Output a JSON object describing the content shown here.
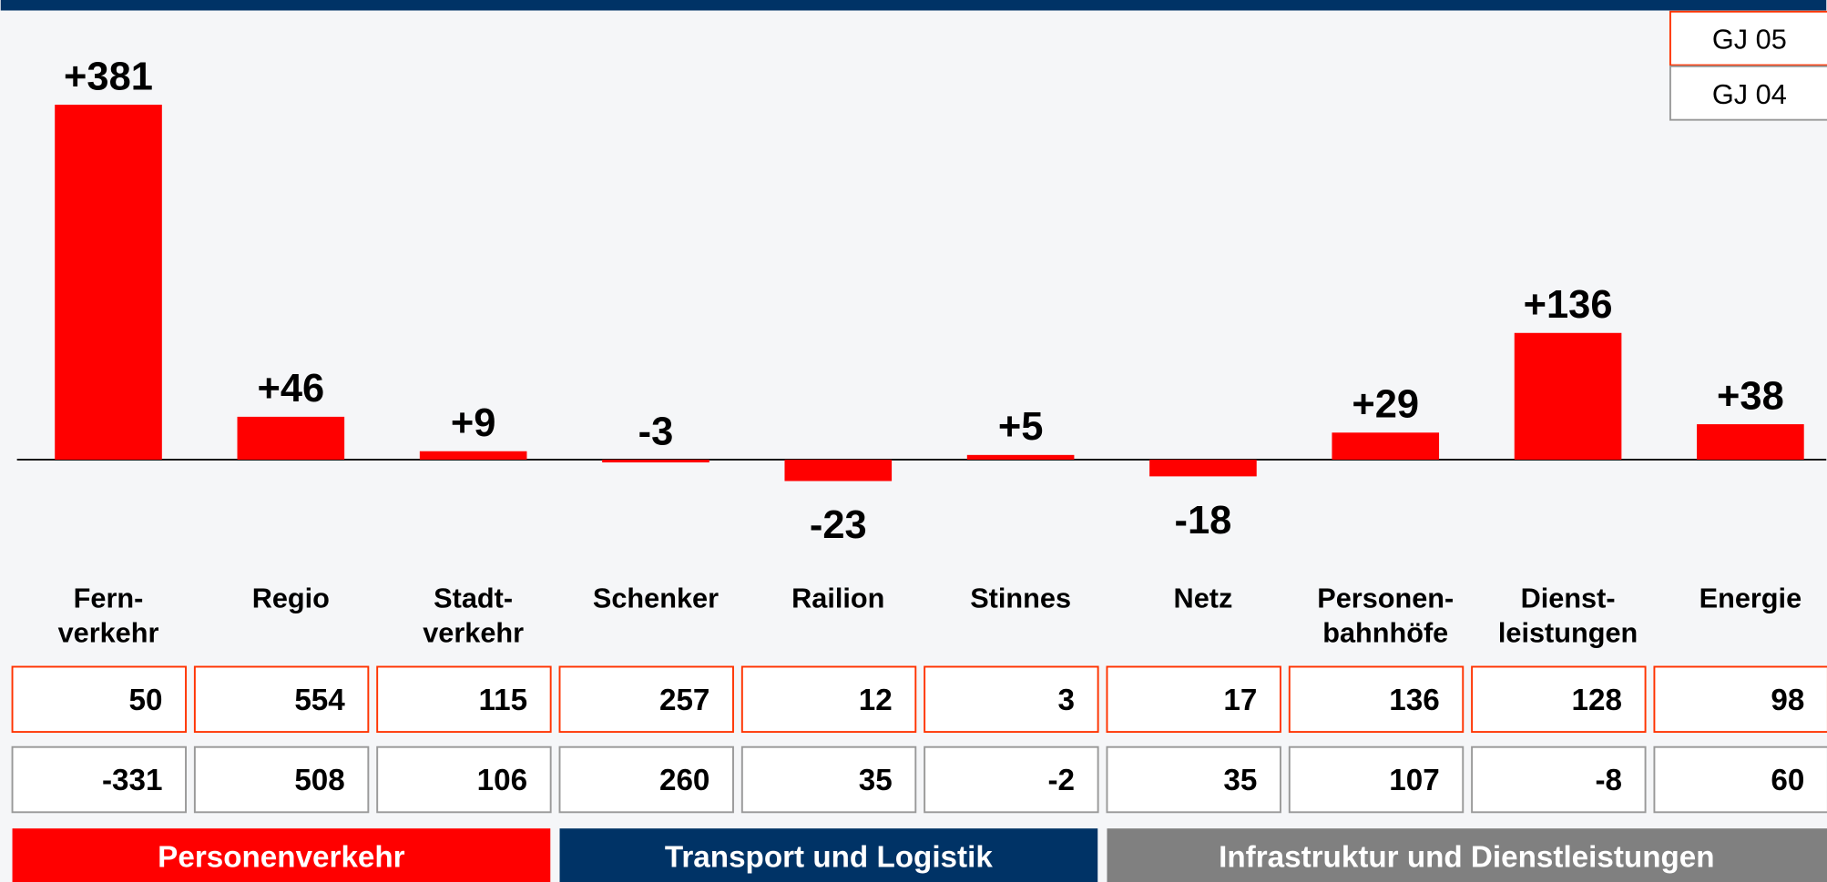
{
  "chart_data": {
    "type": "bar",
    "categories": [
      "Fern-\nverkehr",
      "Regio",
      "Stadt-\nverkehr",
      "Schenker",
      "Railion",
      "Stinnes",
      "Netz",
      "Personen-\nbahnhöfe",
      "Dienst-\nleistungen",
      "Energie"
    ],
    "values": [
      381,
      46,
      9,
      -3,
      -23,
      5,
      -18,
      29,
      136,
      38
    ],
    "value_labels": [
      "+381",
      "+46",
      "+9",
      "-3",
      "-23",
      "+5",
      "-18",
      "+29",
      "+136",
      "+38"
    ],
    "color": "#ff0000",
    "series": [
      {
        "name": "GJ 05",
        "color": "#ff3300",
        "values": [
          50,
          554,
          115,
          257,
          12,
          3,
          17,
          136,
          128,
          98
        ]
      },
      {
        "name": "GJ 04",
        "color": "#999999",
        "values": [
          -331,
          508,
          106,
          260,
          35,
          -2,
          35,
          107,
          -8,
          60
        ]
      }
    ],
    "groups": [
      {
        "name": "Personenverkehr",
        "color": "#ff0000",
        "span": 3
      },
      {
        "name": "Transport und Logistik",
        "color": "#003366",
        "span": 3
      },
      {
        "name": "Infrastruktur und Dienstleistungen",
        "color": "#808080",
        "span": 4
      }
    ]
  }
}
